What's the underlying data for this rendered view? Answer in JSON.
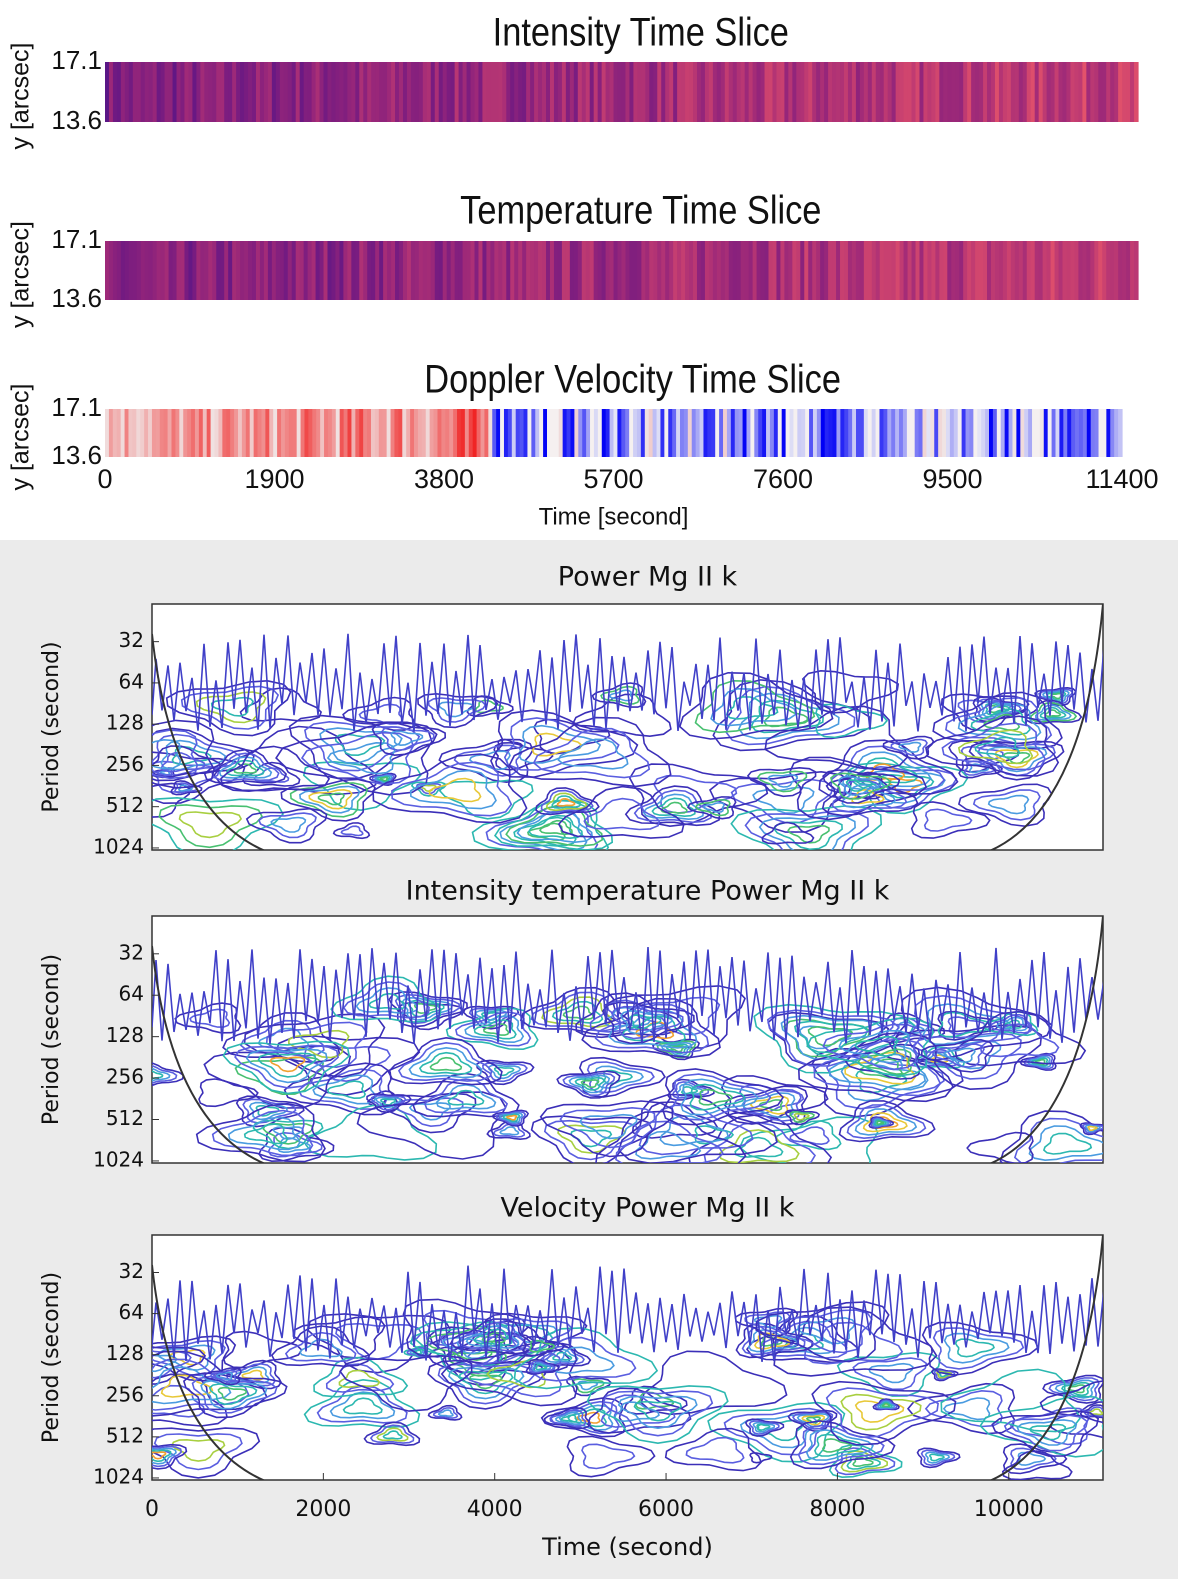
{
  "chart_data": [
    {
      "type": "heatmap",
      "title": "Intensity Time Slice",
      "ylabel": "y [arcsec]",
      "ylim": [
        13.6,
        17.1
      ],
      "yticks": [
        13.6,
        17.1
      ],
      "colormap": "plasma"
    },
    {
      "type": "heatmap",
      "title": "Temperature Time Slice",
      "ylabel": "y [arcsec]",
      "ylim": [
        13.6,
        17.1
      ],
      "yticks": [
        13.6,
        17.1
      ],
      "colormap": "plasma"
    },
    {
      "type": "heatmap",
      "title": "Doppler Velocity Time Slice",
      "ylabel": "y [arcsec]",
      "ylim": [
        13.6,
        17.1
      ],
      "yticks": [
        13.6,
        17.1
      ],
      "colormap": "bwr",
      "xlabel": "Time [second]",
      "xlim": [
        0,
        11400
      ],
      "xticks": [
        0,
        1900,
        3800,
        5700,
        7600,
        9500,
        11400
      ]
    },
    {
      "type": "contour",
      "title": "Power Mg II k",
      "ylabel": "Period (second)",
      "ylim": [
        17,
        1060
      ],
      "yticks": [
        32,
        64,
        128,
        256,
        512,
        1024
      ],
      "log_scale": true,
      "y_inverted": true
    },
    {
      "type": "contour",
      "title": "Intensity temperature Power Mg II k",
      "ylabel": "Period (second)",
      "ylim": [
        17,
        1060
      ],
      "yticks": [
        32,
        64,
        128,
        256,
        512,
        1024
      ],
      "log_scale": true,
      "y_inverted": true
    },
    {
      "type": "contour",
      "title": "Velocity Power Mg II k",
      "ylabel": "Period (second)",
      "ylim": [
        17,
        1060
      ],
      "yticks": [
        32,
        64,
        128,
        256,
        512,
        1024
      ],
      "log_scale": true,
      "y_inverted": true,
      "xlabel": "Time (second)",
      "xlim": [
        0,
        11100
      ],
      "xticks": [
        0,
        2000,
        4000,
        6000,
        8000,
        10000
      ]
    }
  ]
}
